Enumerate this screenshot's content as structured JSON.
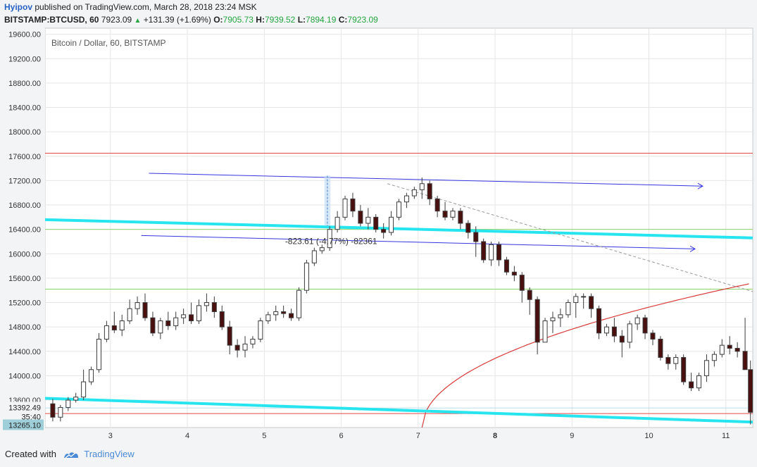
{
  "header": {
    "author": "Hyipov",
    "published_text": "published on TradingView.com, March 28, 2018 23:24 MSK",
    "symbol": "BITSTAMP:BTCUSD, 60",
    "last": "7923.09",
    "change": "+131.39 (+1.69%)",
    "o_label": "O:",
    "o_value": "7905.73",
    "h_label": "H:",
    "h_value": "7939.52",
    "l_label": "L:",
    "l_value": "7894.19",
    "c_label": "C:",
    "c_value": "7923.09"
  },
  "footer": {
    "created_with": "Created with",
    "brand": "TradingView"
  },
  "colors": {
    "up_candle": "#ffffff",
    "down_candle": "#4a1010",
    "candle_outline": "#3b3b3b",
    "thick_channel": "#27e5ef",
    "thin_channel": "#3535e0",
    "horizontal_red": "#e04848",
    "horizontal_green": "#8fd66a",
    "arc_red": "#d83a3a",
    "grid": "#e6e6e6",
    "price_tag": "#9ecfd9"
  },
  "chart_data": {
    "type": "candlestick",
    "title": "Bitcoin / Dollar, 60, BITSTAMP",
    "xlabel": "",
    "ylabel": "",
    "y_ticks": [
      "19600.00",
      "19200.00",
      "18800.00",
      "18400.00",
      "18000.00",
      "17600.00",
      "17200.00",
      "16800.00",
      "16400.00",
      "16000.00",
      "15600.00",
      "15200.00",
      "14800.00",
      "14400.00",
      "14000.00",
      "13600.00"
    ],
    "x_ticks": [
      "3",
      "4",
      "5",
      "6",
      "7",
      "8",
      "9",
      "10",
      "11"
    ],
    "x_range_days": [
      2.15,
      11.35
    ],
    "ylim": [
      13150,
      19700
    ],
    "price_tags": [
      "13392.49",
      "35:40",
      "13265.10"
    ],
    "measure_label": "-823.61 (-4.77%) -82361",
    "horizontal_levels": [
      {
        "price": 17650,
        "color": "red"
      },
      {
        "price": 16400,
        "color": "green"
      },
      {
        "price": 15420,
        "color": "green"
      },
      {
        "price": 13380,
        "color": "red"
      },
      {
        "price": 13470,
        "color": "lightblue"
      }
    ],
    "trend_lines": [
      {
        "name": "thick-upper",
        "from": [
          2.15,
          16560
        ],
        "to": [
          11.35,
          16260
        ],
        "style": "thick-cyan"
      },
      {
        "name": "thick-lower",
        "from": [
          2.15,
          13630
        ],
        "to": [
          11.35,
          13240
        ],
        "style": "thick-cyan"
      },
      {
        "name": "thin-upper",
        "from": [
          3.5,
          17320
        ],
        "to": [
          10.7,
          17110
        ],
        "style": "thin-blue-arrow"
      },
      {
        "name": "thin-lower",
        "from": [
          3.4,
          16300
        ],
        "to": [
          10.6,
          16080
        ],
        "style": "thin-blue-arrow"
      },
      {
        "name": "dashed",
        "from": [
          6.6,
          17150
        ],
        "to": [
          11.35,
          15380
        ],
        "style": "dashed-gray"
      }
    ],
    "series": [
      {
        "name": "BTCUSD",
        "x_days": [
          2.25,
          2.35,
          2.45,
          2.55,
          2.65,
          2.75,
          2.85,
          2.95,
          3.05,
          3.15,
          3.25,
          3.35,
          3.45,
          3.55,
          3.65,
          3.75,
          3.85,
          3.95,
          4.05,
          4.15,
          4.25,
          4.35,
          4.45,
          4.55,
          4.65,
          4.75,
          4.85,
          4.95,
          5.05,
          5.15,
          5.25,
          5.35,
          5.45,
          5.55,
          5.65,
          5.75,
          5.85,
          5.95,
          6.05,
          6.15,
          6.25,
          6.35,
          6.45,
          6.55,
          6.65,
          6.75,
          6.85,
          6.95,
          7.05,
          7.15,
          7.25,
          7.35,
          7.45,
          7.55,
          7.65,
          7.75,
          7.85,
          7.95,
          8.05,
          8.15,
          8.25,
          8.35,
          8.45,
          8.55,
          8.65,
          8.75,
          8.85,
          8.95,
          9.05,
          9.15,
          9.25,
          9.35,
          9.45,
          9.55,
          9.65,
          9.75,
          9.85,
          9.95,
          10.05,
          10.15,
          10.25,
          10.35,
          10.45,
          10.55,
          10.65,
          10.75,
          10.85,
          10.95,
          11.05,
          11.15,
          11.25,
          11.32
        ],
        "open": [
          13540,
          13320,
          13480,
          13600,
          13650,
          13900,
          14100,
          14600,
          14820,
          14750,
          14900,
          15100,
          15200,
          14950,
          14700,
          14900,
          14820,
          14950,
          15000,
          14900,
          15150,
          15200,
          15050,
          14800,
          14500,
          14420,
          14520,
          14600,
          14900,
          15000,
          15050,
          15020,
          14950,
          15400,
          15850,
          16050,
          16100,
          16400,
          16600,
          16900,
          16700,
          16500,
          16600,
          16400,
          16350,
          16600,
          16850,
          16950,
          17050,
          17150,
          16900,
          16700,
          16600,
          16700,
          16500,
          16350,
          16200,
          15900,
          16150,
          15900,
          15700,
          15650,
          15400,
          15250,
          14550,
          14900,
          14950,
          15000,
          15200,
          15300,
          15300,
          15100,
          14700,
          14800,
          14650,
          14550,
          14850,
          14950,
          14700,
          14600,
          14300,
          14200,
          14300,
          13900,
          13800,
          14000,
          14250,
          14350,
          14500,
          14450,
          14400,
          14100
        ],
        "high": [
          13620,
          13520,
          13650,
          13720,
          14100,
          14150,
          14700,
          14900,
          15050,
          15000,
          15250,
          15300,
          15350,
          15050,
          14950,
          15050,
          15050,
          15100,
          15200,
          15250,
          15350,
          15300,
          15150,
          14900,
          14600,
          14650,
          14650,
          14950,
          15050,
          15150,
          15150,
          15100,
          15450,
          15900,
          16100,
          16150,
          16450,
          16700,
          16950,
          17000,
          16800,
          16750,
          16650,
          16500,
          16700,
          16900,
          17000,
          17100,
          17250,
          17200,
          16950,
          16850,
          16750,
          16750,
          16550,
          16450,
          16250,
          16200,
          16200,
          15950,
          15800,
          15700,
          15450,
          15300,
          14950,
          15050,
          15100,
          15250,
          15350,
          15350,
          15350,
          15150,
          14850,
          14950,
          14750,
          14900,
          15000,
          15000,
          14750,
          14650,
          14350,
          14350,
          14350,
          14050,
          14050,
          14350,
          14400,
          14600,
          14650,
          14550,
          14950,
          14250
        ],
        "low": [
          13250,
          13250,
          13420,
          13560,
          13600,
          13850,
          14050,
          14550,
          14700,
          14650,
          14850,
          15000,
          14900,
          14650,
          14600,
          14750,
          14750,
          14850,
          14850,
          14850,
          15050,
          14950,
          14750,
          14350,
          14300,
          14300,
          14450,
          14550,
          14850,
          14900,
          14950,
          14900,
          14900,
          15350,
          15800,
          16000,
          16050,
          16350,
          16550,
          16600,
          16450,
          16400,
          16350,
          16250,
          16300,
          16550,
          16750,
          16900,
          16900,
          16800,
          16600,
          16550,
          16550,
          16400,
          16250,
          15950,
          15850,
          15800,
          15800,
          15650,
          15550,
          15200,
          15000,
          14350,
          14550,
          14700,
          14800,
          14950,
          14950,
          15100,
          14950,
          14600,
          14650,
          14550,
          14300,
          14450,
          14750,
          14600,
          14500,
          14250,
          14100,
          14100,
          13850,
          13750,
          13750,
          13900,
          14150,
          14300,
          14350,
          14300,
          14100,
          13200
        ],
        "close": [
          13320,
          13480,
          13600,
          13650,
          13900,
          14100,
          14600,
          14820,
          14750,
          14900,
          15100,
          15200,
          14950,
          14700,
          14900,
          14820,
          14950,
          15000,
          14900,
          15150,
          15200,
          15050,
          14800,
          14500,
          14420,
          14520,
          14600,
          14900,
          15000,
          15050,
          15020,
          14950,
          15400,
          15850,
          16050,
          16100,
          16400,
          16600,
          16900,
          16700,
          16500,
          16600,
          16400,
          16350,
          16600,
          16850,
          16950,
          17050,
          17150,
          16900,
          16700,
          16600,
          16700,
          16500,
          16350,
          16200,
          15900,
          16150,
          15900,
          15700,
          15650,
          15400,
          15250,
          14550,
          14900,
          14950,
          15000,
          15200,
          15300,
          15300,
          15100,
          14700,
          14800,
          14650,
          14550,
          14850,
          14950,
          14700,
          14600,
          14300,
          14200,
          14300,
          13900,
          13800,
          14000,
          14250,
          14350,
          14500,
          14450,
          14400,
          14100,
          13400
        ]
      }
    ]
  }
}
